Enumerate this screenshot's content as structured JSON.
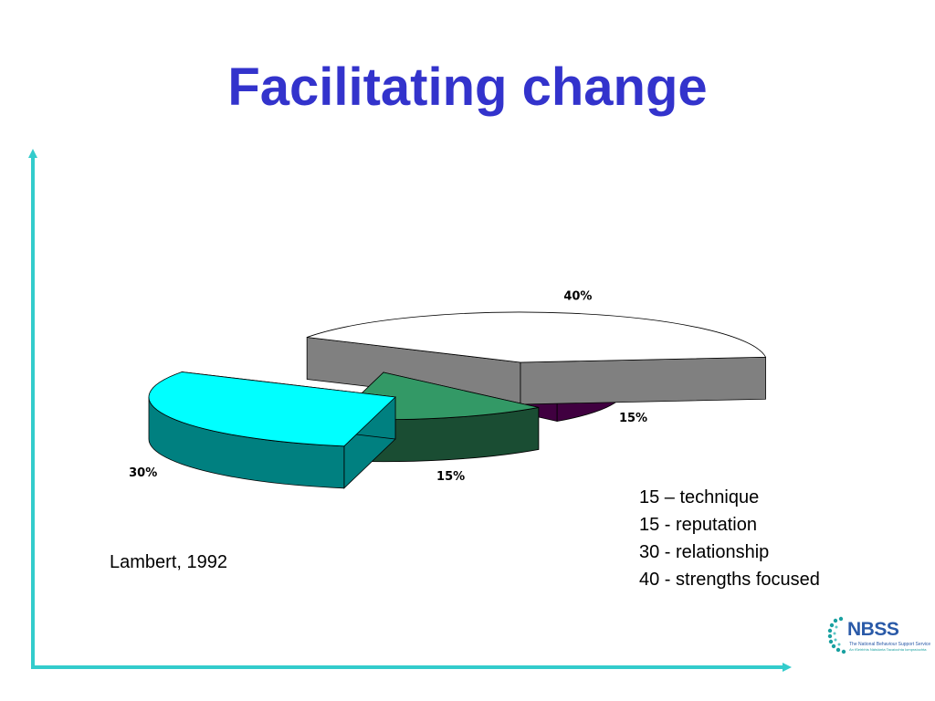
{
  "slide": {
    "title": "Facilitating change",
    "citation": "Lambert, 1992",
    "key_items": [
      "15 – technique",
      "15 - reputation",
      "30 - relationship",
      "40 - strengths focused"
    ]
  },
  "logo": {
    "acronym": "NBSS",
    "line1": "The National Behaviour Support Service",
    "line2": "An tSeirbhís Náisiúnta Tacaíochta Iompraíochta"
  },
  "colors": {
    "title": "#3333cc",
    "axes": "#33cccc",
    "slice_white": "#ffffff",
    "slice_purple": "#800080",
    "slice_green": "#339966",
    "slice_cyan": "#00ffff"
  },
  "chart_data": {
    "type": "pie",
    "style": "3D exploded pie",
    "categories": [
      "strengths focused",
      "technique",
      "reputation",
      "relationship"
    ],
    "values": [
      40,
      15,
      15,
      30
    ],
    "data_labels": [
      "40%",
      "15%",
      "15%",
      "30%"
    ],
    "slice_colors": [
      "#ffffff",
      "#800080",
      "#339966",
      "#00ffff"
    ],
    "legend": "none"
  }
}
